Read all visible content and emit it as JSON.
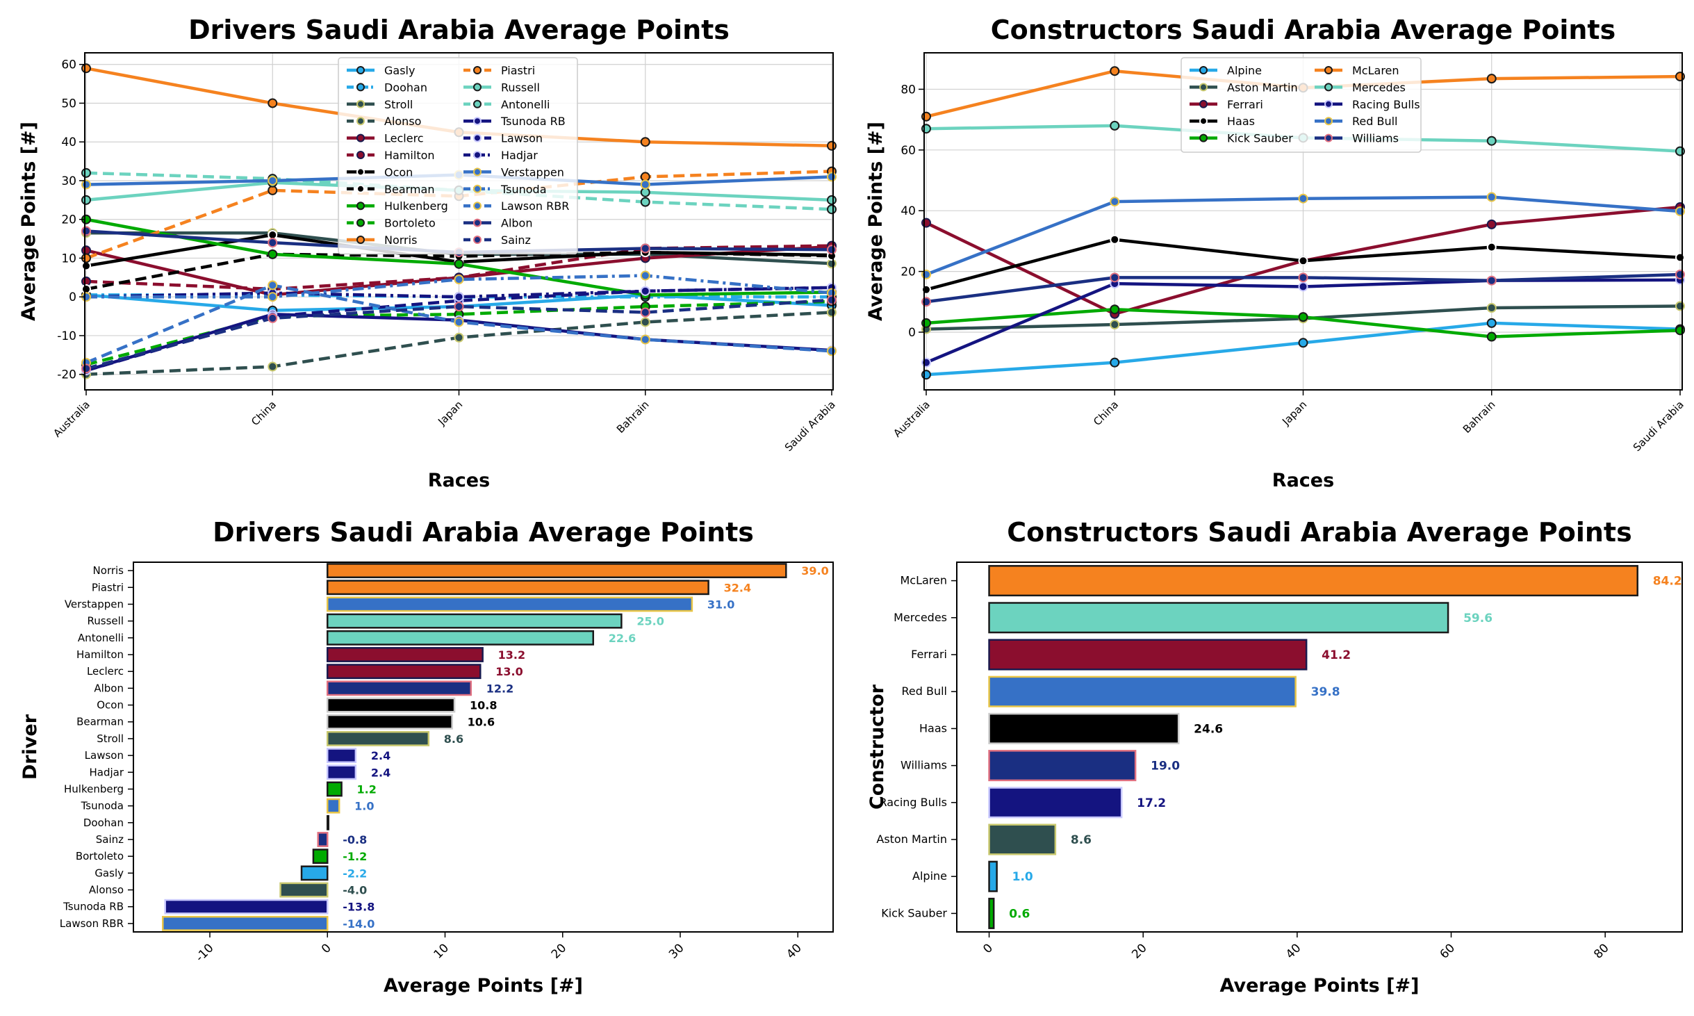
{
  "chart_data": [
    {
      "type": "line",
      "title": "Drivers Saudi Arabia Average Points",
      "xlabel": "Races",
      "ylabel": "Average Points [#]",
      "categories": [
        "Australia",
        "China",
        "Japan",
        "Bahrain",
        "Saudi Arabia"
      ],
      "ylim": [
        -24,
        63
      ],
      "yticks": [
        -20,
        -10,
        0,
        10,
        20,
        30,
        40,
        50,
        60
      ],
      "grid": true,
      "legend_position": "top-center",
      "legend_columns": 2,
      "series": [
        {
          "name": "Gasly",
          "color": "#27a9e8",
          "edge": "#1a1a1a",
          "dash": "solid",
          "values": [
            0.5,
            -3.5,
            -2.5,
            0.5,
            -2.2
          ]
        },
        {
          "name": "Doohan",
          "color": "#27a9e8",
          "edge": "#1a1a1a",
          "dash": "dashdot",
          "values": [
            0.5,
            0.5,
            0,
            0,
            0
          ]
        },
        {
          "name": "Stroll",
          "color": "#2f4f4f",
          "edge": "#c8c86e",
          "dash": "solid",
          "values": [
            16.5,
            16.5,
            11,
            11,
            8.6
          ]
        },
        {
          "name": "Alonso",
          "color": "#2f4f4f",
          "edge": "#c8c86e",
          "dash": "dashed",
          "values": [
            -20,
            -18,
            -10.5,
            -6.5,
            -4
          ]
        },
        {
          "name": "Leclerc",
          "color": "#8b0e2e",
          "edge": "#1a1a4e",
          "dash": "solid",
          "values": [
            12,
            0.5,
            5,
            10,
            13
          ]
        },
        {
          "name": "Hamilton",
          "color": "#8b0e2e",
          "edge": "#1a1a4e",
          "dash": "dashed",
          "values": [
            4,
            2,
            5,
            12.5,
            13.2
          ]
        },
        {
          "name": "Ocon",
          "color": "#000000",
          "edge": "#ffffff",
          "dash": "solid",
          "values": [
            8,
            16,
            9,
            11.5,
            10.8
          ]
        },
        {
          "name": "Bearman",
          "color": "#000000",
          "edge": "#ffffff",
          "dash": "dashed",
          "values": [
            2,
            11,
            10.5,
            11.5,
            10.6
          ]
        },
        {
          "name": "Hulkenberg",
          "color": "#00aa00",
          "edge": "#1a1a1a",
          "dash": "solid",
          "values": [
            20,
            11,
            8.5,
            0.5,
            1.2
          ]
        },
        {
          "name": "Bortoleto",
          "color": "#00aa00",
          "edge": "#1a1a1a",
          "dash": "dashed",
          "values": [
            -17.5,
            -5,
            -4.5,
            -2.5,
            -1.2
          ]
        },
        {
          "name": "Norris",
          "color": "#f5821f",
          "edge": "#1a1a1a",
          "dash": "solid",
          "values": [
            59,
            50,
            42.5,
            40,
            39
          ]
        },
        {
          "name": "Piastri",
          "color": "#f5821f",
          "edge": "#1a1a1a",
          "dash": "dashed",
          "values": [
            10,
            27.5,
            26,
            31,
            32.4
          ]
        },
        {
          "name": "Russell",
          "color": "#6cd3bf",
          "edge": "#1a1a1a",
          "dash": "solid",
          "values": [
            25,
            29.5,
            27.5,
            27,
            25
          ]
        },
        {
          "name": "Antonelli",
          "color": "#6cd3bf",
          "edge": "#1a1a1a",
          "dash": "dashed",
          "values": [
            32,
            30.5,
            27.5,
            24.5,
            22.6
          ]
        },
        {
          "name": "Tsunoda RB",
          "color": "#141480",
          "edge": "#c8c8ff",
          "dash": "solid",
          "values": [
            -19,
            -4.5,
            -6,
            -11,
            -13.8
          ]
        },
        {
          "name": "Lawson",
          "color": "#141480",
          "edge": "#c8c8ff",
          "dash": "dashed",
          "values": [
            -19,
            -5,
            -1,
            1.5,
            2.4
          ]
        },
        {
          "name": "Hadjar",
          "color": "#141480",
          "edge": "#c8c8ff",
          "dash": "dashdot",
          "values": [
            0,
            1,
            0,
            1.5,
            2.4
          ]
        },
        {
          "name": "Verstappen",
          "color": "#3671c6",
          "edge": "#e8c547",
          "dash": "solid",
          "values": [
            29,
            30,
            31.5,
            29,
            31
          ]
        },
        {
          "name": "Tsunoda",
          "color": "#3671c6",
          "edge": "#e8c547",
          "dash": "dashdot",
          "values": [
            0,
            0,
            4.5,
            5.5,
            1
          ]
        },
        {
          "name": "Lawson RBR",
          "color": "#3671c6",
          "edge": "#e8c547",
          "dash": "dashed",
          "values": [
            -17,
            3,
            -6.5,
            -11,
            -14
          ]
        },
        {
          "name": "Albon",
          "color": "#1a2f82",
          "edge": "#e07080",
          "dash": "solid",
          "values": [
            17,
            14,
            11.5,
            12.5,
            12.2
          ]
        },
        {
          "name": "Sainz",
          "color": "#1a2f82",
          "edge": "#e07080",
          "dash": "dashed",
          "values": [
            -18.5,
            -5.5,
            -2.5,
            -4,
            -0.8
          ]
        }
      ]
    },
    {
      "type": "line",
      "title": "Constructors Saudi Arabia Average Points",
      "xlabel": "Races",
      "ylabel": "Average Points [#]",
      "categories": [
        "Australia",
        "China",
        "Japan",
        "Bahrain",
        "Saudi Arabia"
      ],
      "ylim": [
        -19,
        92
      ],
      "yticks": [
        0,
        20,
        40,
        60,
        80
      ],
      "grid": true,
      "legend_position": "top-center",
      "legend_columns": 2,
      "series": [
        {
          "name": "Alpine",
          "color": "#27a9e8",
          "edge": "#1a1a1a",
          "dash": "solid",
          "values": [
            -14,
            -10,
            -3.5,
            3,
            1
          ]
        },
        {
          "name": "Aston Martin",
          "color": "#2f4f4f",
          "edge": "#c8c86e",
          "dash": "solid",
          "values": [
            1,
            2.5,
            4.5,
            8,
            8.6
          ]
        },
        {
          "name": "Ferrari",
          "color": "#8b0e2e",
          "edge": "#1a1a4e",
          "dash": "solid",
          "values": [
            36,
            6,
            23.5,
            35.5,
            41.2
          ]
        },
        {
          "name": "Haas",
          "color": "#000000",
          "edge": "#ffffff",
          "dash": "solid",
          "values": [
            14,
            30.5,
            23.5,
            28,
            24.6
          ]
        },
        {
          "name": "Kick Sauber",
          "color": "#00aa00",
          "edge": "#1a1a1a",
          "dash": "solid",
          "values": [
            3,
            7.5,
            5,
            -1.5,
            0.6
          ]
        },
        {
          "name": "McLaren",
          "color": "#f5821f",
          "edge": "#1a1a1a",
          "dash": "solid",
          "values": [
            71,
            86,
            80.5,
            83.5,
            84.2
          ]
        },
        {
          "name": "Mercedes",
          "color": "#6cd3bf",
          "edge": "#1a1a1a",
          "dash": "solid",
          "values": [
            67,
            68,
            64,
            63,
            59.6
          ]
        },
        {
          "name": "Racing Bulls",
          "color": "#141480",
          "edge": "#c8c8ff",
          "dash": "solid",
          "values": [
            -10,
            16,
            15,
            17,
            17.2
          ]
        },
        {
          "name": "Red Bull",
          "color": "#3671c6",
          "edge": "#e8c547",
          "dash": "solid",
          "values": [
            19,
            43,
            44,
            44.5,
            39.8
          ]
        },
        {
          "name": "Williams",
          "color": "#1a2f82",
          "edge": "#e07080",
          "dash": "solid",
          "values": [
            10,
            18,
            18,
            17,
            19
          ]
        }
      ]
    },
    {
      "type": "bar",
      "orientation": "horizontal",
      "title": "Drivers Saudi Arabia Average Points",
      "xlabel": "Average Points [#]",
      "ylabel": "Driver",
      "xlim": [
        -16.5,
        43
      ],
      "xticks": [
        -10,
        0,
        10,
        20,
        30,
        40
      ],
      "categories": [
        "Norris",
        "Piastri",
        "Verstappen",
        "Russell",
        "Antonelli",
        "Hamilton",
        "Leclerc",
        "Albon",
        "Ocon",
        "Bearman",
        "Stroll",
        "Lawson",
        "Hadjar",
        "Hulkenberg",
        "Tsunoda",
        "Doohan",
        "Sainz",
        "Bortoleto",
        "Gasly",
        "Alonso",
        "Tsunoda RB",
        "Lawson RBR"
      ],
      "values": [
        39.0,
        32.4,
        31.0,
        25.0,
        22.6,
        13.2,
        13.0,
        12.2,
        10.8,
        10.6,
        8.6,
        2.4,
        2.4,
        1.2,
        1.0,
        0.0,
        -0.8,
        -1.2,
        -2.2,
        -4.0,
        -13.8,
        -14.0
      ],
      "labels": [
        "39.0",
        "32.4",
        "31.0",
        "25.0",
        "22.6",
        "13.2",
        "13.0",
        "12.2",
        "10.8",
        "10.6",
        "8.6",
        "2.4",
        "2.4",
        "1.2",
        "1.0",
        "",
        "-0.8",
        "-1.2",
        "-2.2",
        "-4.0",
        "-13.8",
        "-14.0"
      ],
      "colors": [
        "#f5821f",
        "#f5821f",
        "#3671c6",
        "#6cd3bf",
        "#6cd3bf",
        "#8b0e2e",
        "#8b0e2e",
        "#1a2f82",
        "#000000",
        "#000000",
        "#2f4f4f",
        "#141480",
        "#141480",
        "#00aa00",
        "#3671c6",
        "#27a9e8",
        "#1a2f82",
        "#00aa00",
        "#27a9e8",
        "#2f4f4f",
        "#141480",
        "#3671c6"
      ],
      "edges": [
        "#1a1a1a",
        "#1a1a1a",
        "#e8c547",
        "#1a1a1a",
        "#1a1a1a",
        "#1a1a4e",
        "#1a1a4e",
        "#e07080",
        "#cccccc",
        "#cccccc",
        "#c8c86e",
        "#c8c8ff",
        "#c8c8ff",
        "#1a1a1a",
        "#e8c547",
        "#1a1a1a",
        "#e07080",
        "#1a1a1a",
        "#1a1a1a",
        "#c8c86e",
        "#c8c8ff",
        "#e8c547"
      ]
    },
    {
      "type": "bar",
      "orientation": "horizontal",
      "title": "Constructors Saudi Arabia Average Points",
      "xlabel": "Average Points [#]",
      "ylabel": "Constructor",
      "xlim": [
        -4.2,
        90
      ],
      "xticks": [
        0,
        20,
        40,
        60,
        80
      ],
      "categories": [
        "McLaren",
        "Mercedes",
        "Ferrari",
        "Red Bull",
        "Haas",
        "Williams",
        "Racing Bulls",
        "Aston Martin",
        "Alpine",
        "Kick Sauber"
      ],
      "values": [
        84.2,
        59.6,
        41.2,
        39.8,
        24.6,
        19.0,
        17.2,
        8.6,
        1.0,
        0.6
      ],
      "labels": [
        "84.2",
        "59.6",
        "41.2",
        "39.8",
        "24.6",
        "19.0",
        "17.2",
        "8.6",
        "1.0",
        "0.6"
      ],
      "colors": [
        "#f5821f",
        "#6cd3bf",
        "#8b0e2e",
        "#3671c6",
        "#000000",
        "#1a2f82",
        "#141480",
        "#2f4f4f",
        "#27a9e8",
        "#00aa00"
      ],
      "edges": [
        "#1a1a1a",
        "#1a1a1a",
        "#1a1a4e",
        "#e8c547",
        "#cccccc",
        "#e07080",
        "#c8c8ff",
        "#c8c86e",
        "#1a1a1a",
        "#1a1a1a"
      ]
    }
  ]
}
